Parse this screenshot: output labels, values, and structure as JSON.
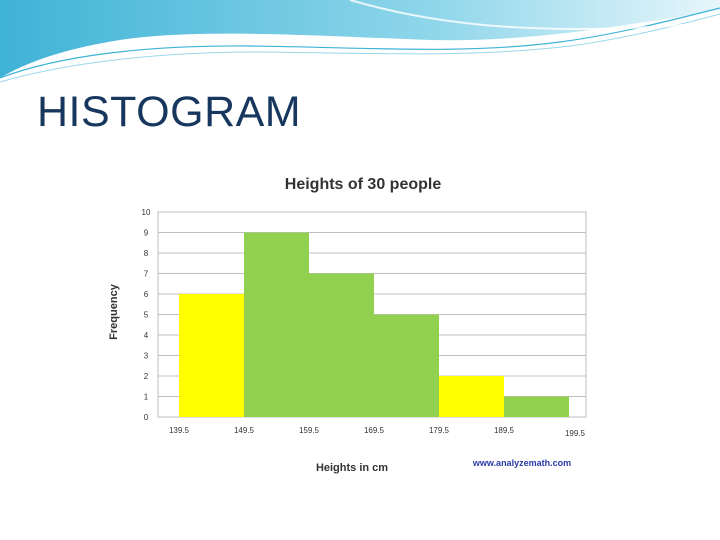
{
  "slide": {
    "title": "HISTOGRAM"
  },
  "colors": {
    "title": "#17375e",
    "header_wave": "#3fb3d6",
    "bar_yellow": "#ffff00",
    "bar_green": "#92d050",
    "grid": "#bfbfbf",
    "credit": "#2a3aa8"
  },
  "chart_data": {
    "type": "bar",
    "title": "Heights of 30 people",
    "xlabel": "Heights in cm",
    "ylabel": "Frequency",
    "bin_edges": [
      139.5,
      149.5,
      159.5,
      169.5,
      179.5,
      189.5,
      199.5
    ],
    "x_tick_labels": [
      "139.5",
      "149.5",
      "159.5",
      "169.5",
      "179.5",
      "189.5",
      "199.5"
    ],
    "values": [
      6,
      9,
      7,
      5,
      2,
      1
    ],
    "bar_colors": [
      "yellow",
      "green",
      "green",
      "green",
      "yellow",
      "green"
    ],
    "ylim": [
      0,
      10
    ],
    "y_ticks": [
      0,
      1,
      2,
      3,
      4,
      5,
      6,
      7,
      8,
      9,
      10
    ],
    "grid": true,
    "credit": "www.analyzemath.com"
  }
}
